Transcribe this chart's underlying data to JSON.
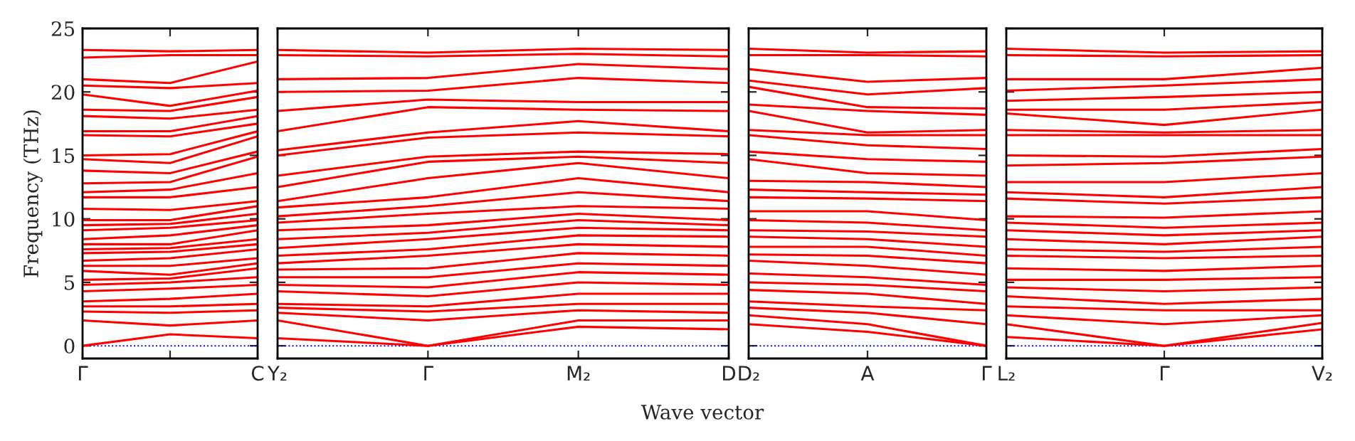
{
  "chart_data": [
    {
      "type": "line",
      "ylabel": "Frequency (THz)",
      "categories": [
        "Γ",
        null,
        "C"
      ],
      "ylim": [
        -1,
        25
      ],
      "yticks": [
        0,
        5,
        10,
        15,
        20,
        25
      ],
      "line_style": "solid",
      "ref_lines": [
        {
          "axis": "y",
          "value": 0,
          "color": "#0000ff",
          "line_style": "dotted"
        }
      ],
      "series": [
        {
          "color": "#ff0000",
          "values": [
            0,
            0.9,
            0.6
          ]
        },
        {
          "color": "#ff0000",
          "values": [
            2.0,
            1.6,
            2.0
          ]
        },
        {
          "color": "#ff0000",
          "values": [
            2.7,
            2.6,
            2.8
          ]
        },
        {
          "color": "#ff0000",
          "values": [
            3.1,
            3.1,
            3.3
          ]
        },
        {
          "color": "#ff0000",
          "values": [
            3.5,
            3.7,
            4.1
          ]
        },
        {
          "color": "#ff0000",
          "values": [
            4.3,
            4.5,
            4.8
          ]
        },
        {
          "color": "#ff0000",
          "values": [
            4.8,
            5.0,
            5.4
          ]
        },
        {
          "color": "#ff0000",
          "values": [
            5.2,
            5.3,
            6.1
          ]
        },
        {
          "color": "#ff0000",
          "values": [
            5.9,
            5.6,
            6.5
          ]
        },
        {
          "color": "#ff0000",
          "values": [
            6.3,
            6.3,
            6.9
          ]
        },
        {
          "color": "#ff0000",
          "values": [
            6.7,
            6.9,
            7.6
          ]
        },
        {
          "color": "#ff0000",
          "values": [
            7.3,
            7.4,
            8.0
          ]
        },
        {
          "color": "#ff0000",
          "values": [
            7.6,
            7.7,
            8.4
          ]
        },
        {
          "color": "#ff0000",
          "values": [
            8.0,
            8.0,
            9.1
          ]
        },
        {
          "color": "#ff0000",
          "values": [
            8.4,
            8.7,
            9.5
          ]
        },
        {
          "color": "#ff0000",
          "values": [
            9.1,
            9.3,
            9.9
          ]
        },
        {
          "color": "#ff0000",
          "values": [
            9.5,
            9.6,
            10.4
          ]
        },
        {
          "color": "#ff0000",
          "values": [
            9.9,
            9.9,
            11.0
          ]
        },
        {
          "color": "#ff0000",
          "values": [
            10.8,
            10.7,
            11.4
          ]
        },
        {
          "color": "#ff0000",
          "values": [
            11.7,
            11.7,
            12.5
          ]
        },
        {
          "color": "#ff0000",
          "values": [
            12.1,
            12.3,
            13.6
          ]
        },
        {
          "color": "#ff0000",
          "values": [
            12.8,
            12.9,
            14.9
          ]
        },
        {
          "color": "#ff0000",
          "values": [
            13.8,
            13.6,
            15.3
          ]
        },
        {
          "color": "#ff0000",
          "values": [
            14.7,
            14.4,
            16.5
          ]
        },
        {
          "color": "#ff0000",
          "values": [
            15.0,
            15.1,
            16.9
          ]
        },
        {
          "color": "#ff0000",
          "values": [
            16.6,
            16.5,
            17.5
          ]
        },
        {
          "color": "#ff0000",
          "values": [
            16.9,
            16.9,
            18.1
          ]
        },
        {
          "color": "#ff0000",
          "values": [
            18.1,
            17.9,
            18.6
          ]
        },
        {
          "color": "#ff0000",
          "values": [
            18.6,
            18.5,
            19.6
          ]
        },
        {
          "color": "#ff0000",
          "values": [
            19.8,
            18.9,
            20.1
          ]
        },
        {
          "color": "#ff0000",
          "values": [
            20.5,
            20.3,
            20.7
          ]
        },
        {
          "color": "#ff0000",
          "values": [
            21.0,
            20.7,
            22.4
          ]
        },
        {
          "color": "#ff0000",
          "values": [
            22.7,
            22.9,
            22.9
          ]
        },
        {
          "color": "#ff0000",
          "values": [
            23.3,
            23.2,
            23.3
          ]
        }
      ]
    },
    {
      "type": "line",
      "xlabel": "Wave vector",
      "categories": [
        "Y₂",
        "Γ",
        "M₂",
        "D"
      ],
      "ylim": [
        -1,
        25
      ],
      "yticks": [
        0,
        5,
        10,
        15,
        20,
        25
      ],
      "tick_labels": "x",
      "line_style": "solid",
      "ref_lines": [
        {
          "axis": "y",
          "value": 0,
          "color": "#0000ff",
          "line_style": "dotted"
        }
      ],
      "series": [
        {
          "color": "#ff0000",
          "values": [
            0.6,
            0,
            1.5,
            1.3
          ]
        },
        {
          "color": "#ff0000",
          "values": [
            2.0,
            0,
            2.0,
            2.0
          ]
        },
        {
          "color": "#ff0000",
          "values": [
            2.6,
            2.0,
            2.8,
            2.6
          ]
        },
        {
          "color": "#ff0000",
          "values": [
            3.0,
            2.7,
            3.3,
            3.3
          ]
        },
        {
          "color": "#ff0000",
          "values": [
            3.3,
            3.1,
            4.1,
            4.1
          ]
        },
        {
          "color": "#ff0000",
          "values": [
            4.3,
            3.9,
            5.0,
            4.8
          ]
        },
        {
          "color": "#ff0000",
          "values": [
            4.8,
            4.6,
            5.8,
            5.6
          ]
        },
        {
          "color": "#ff0000",
          "values": [
            5.4,
            5.4,
            6.5,
            6.3
          ]
        },
        {
          "color": "#ff0000",
          "values": [
            6.0,
            6.1,
            7.3,
            7.1
          ]
        },
        {
          "color": "#ff0000",
          "values": [
            6.5,
            7.1,
            8.0,
            7.8
          ]
        },
        {
          "color": "#ff0000",
          "values": [
            7.1,
            7.6,
            8.7,
            8.6
          ]
        },
        {
          "color": "#ff0000",
          "values": [
            7.7,
            8.4,
            9.3,
            9.1
          ]
        },
        {
          "color": "#ff0000",
          "values": [
            8.4,
            8.9,
            9.9,
            9.5
          ]
        },
        {
          "color": "#ff0000",
          "values": [
            9.1,
            9.5,
            10.4,
            9.9
          ]
        },
        {
          "color": "#ff0000",
          "values": [
            9.7,
            10.4,
            11.0,
            10.8
          ]
        },
        {
          "color": "#ff0000",
          "values": [
            10.2,
            11.0,
            12.1,
            11.4
          ]
        },
        {
          "color": "#ff0000",
          "values": [
            10.9,
            11.7,
            13.2,
            12.1
          ]
        },
        {
          "color": "#ff0000",
          "values": [
            11.4,
            13.2,
            14.4,
            13.2
          ]
        },
        {
          "color": "#ff0000",
          "values": [
            12.5,
            14.5,
            14.9,
            14.4
          ]
        },
        {
          "color": "#ff0000",
          "values": [
            13.4,
            14.9,
            15.3,
            15.1
          ]
        },
        {
          "color": "#ff0000",
          "values": [
            15.0,
            16.4,
            16.8,
            16.5
          ]
        },
        {
          "color": "#ff0000",
          "values": [
            15.4,
            16.8,
            17.7,
            16.9
          ]
        },
        {
          "color": "#ff0000",
          "values": [
            16.9,
            18.8,
            18.6,
            18.5
          ]
        },
        {
          "color": "#ff0000",
          "values": [
            18.5,
            19.4,
            19.2,
            19.2
          ]
        },
        {
          "color": "#ff0000",
          "values": [
            20.0,
            20.1,
            21.1,
            20.7
          ]
        },
        {
          "color": "#ff0000",
          "values": [
            21.0,
            21.1,
            22.2,
            21.8
          ]
        },
        {
          "color": "#ff0000",
          "values": [
            22.9,
            22.8,
            23.0,
            22.8
          ]
        },
        {
          "color": "#ff0000",
          "values": [
            23.3,
            23.1,
            23.4,
            23.3
          ]
        }
      ]
    },
    {
      "type": "line",
      "categories": [
        "D₂",
        "A",
        "Γ"
      ],
      "ylim": [
        -1,
        25
      ],
      "yticks": [
        0,
        5,
        10,
        15,
        20,
        25
      ],
      "tick_labels": "x",
      "line_style": "solid",
      "ref_lines": [
        {
          "axis": "y",
          "value": 0,
          "color": "#0000ff",
          "line_style": "dotted"
        }
      ],
      "series": [
        {
          "color": "#ff0000",
          "values": [
            1.7,
            1.1,
            0
          ]
        },
        {
          "color": "#ff0000",
          "values": [
            2.4,
            1.7,
            0
          ]
        },
        {
          "color": "#ff0000",
          "values": [
            3.0,
            2.6,
            1.7
          ]
        },
        {
          "color": "#ff0000",
          "values": [
            3.5,
            3.1,
            2.8
          ]
        },
        {
          "color": "#ff0000",
          "values": [
            4.4,
            4.1,
            3.3
          ]
        },
        {
          "color": "#ff0000",
          "values": [
            5.0,
            4.8,
            4.3
          ]
        },
        {
          "color": "#ff0000",
          "values": [
            5.7,
            5.4,
            4.8
          ]
        },
        {
          "color": "#ff0000",
          "values": [
            6.7,
            6.3,
            5.6
          ]
        },
        {
          "color": "#ff0000",
          "values": [
            7.2,
            7.1,
            6.5
          ]
        },
        {
          "color": "#ff0000",
          "values": [
            7.8,
            7.8,
            7.1
          ]
        },
        {
          "color": "#ff0000",
          "values": [
            8.6,
            8.4,
            7.8
          ]
        },
        {
          "color": "#ff0000",
          "values": [
            9.1,
            9.0,
            8.6
          ]
        },
        {
          "color": "#ff0000",
          "values": [
            9.9,
            9.7,
            9.1
          ]
        },
        {
          "color": "#ff0000",
          "values": [
            10.6,
            10.6,
            9.9
          ]
        },
        {
          "color": "#ff0000",
          "values": [
            11.7,
            11.6,
            11.4
          ]
        },
        {
          "color": "#ff0000",
          "values": [
            12.3,
            12.1,
            11.9
          ]
        },
        {
          "color": "#ff0000",
          "values": [
            13.0,
            12.9,
            12.5
          ]
        },
        {
          "color": "#ff0000",
          "values": [
            14.7,
            13.6,
            13.4
          ]
        },
        {
          "color": "#ff0000",
          "values": [
            15.3,
            14.7,
            14.5
          ]
        },
        {
          "color": "#ff0000",
          "values": [
            16.6,
            15.8,
            15.5
          ]
        },
        {
          "color": "#ff0000",
          "values": [
            17.0,
            16.6,
            16.6
          ]
        },
        {
          "color": "#ff0000",
          "values": [
            18.5,
            16.8,
            17.0
          ]
        },
        {
          "color": "#ff0000",
          "values": [
            19.0,
            18.5,
            18.2
          ]
        },
        {
          "color": "#ff0000",
          "values": [
            20.4,
            18.8,
            18.7
          ]
        },
        {
          "color": "#ff0000",
          "values": [
            20.9,
            19.8,
            20.3
          ]
        },
        {
          "color": "#ff0000",
          "values": [
            21.8,
            20.8,
            21.1
          ]
        },
        {
          "color": "#ff0000",
          "values": [
            22.9,
            22.9,
            22.8
          ]
        },
        {
          "color": "#ff0000",
          "values": [
            23.4,
            23.1,
            23.2
          ]
        }
      ]
    },
    {
      "type": "line",
      "categories": [
        "L₂",
        "Γ",
        "V₂"
      ],
      "ylim": [
        -1,
        25
      ],
      "yticks": [
        0,
        5,
        10,
        15,
        20,
        25
      ],
      "tick_labels": "x",
      "line_style": "solid",
      "ref_lines": [
        {
          "axis": "y",
          "value": 0,
          "color": "#0000ff",
          "line_style": "dotted"
        }
      ],
      "series": [
        {
          "color": "#ff0000",
          "values": [
            0.7,
            0,
            1.3
          ]
        },
        {
          "color": "#ff0000",
          "values": [
            1.7,
            0,
            1.8
          ]
        },
        {
          "color": "#ff0000",
          "values": [
            2.4,
            1.7,
            2.4
          ]
        },
        {
          "color": "#ff0000",
          "values": [
            3.1,
            2.8,
            2.8
          ]
        },
        {
          "color": "#ff0000",
          "values": [
            3.9,
            3.3,
            3.7
          ]
        },
        {
          "color": "#ff0000",
          "values": [
            4.6,
            4.3,
            4.6
          ]
        },
        {
          "color": "#ff0000",
          "values": [
            5.2,
            5.2,
            5.4
          ]
        },
        {
          "color": "#ff0000",
          "values": [
            6.1,
            5.9,
            6.3
          ]
        },
        {
          "color": "#ff0000",
          "values": [
            7.1,
            6.9,
            7.1
          ]
        },
        {
          "color": "#ff0000",
          "values": [
            7.6,
            7.4,
            7.8
          ]
        },
        {
          "color": "#ff0000",
          "values": [
            8.4,
            8.0,
            8.6
          ]
        },
        {
          "color": "#ff0000",
          "values": [
            9.1,
            8.7,
            9.1
          ]
        },
        {
          "color": "#ff0000",
          "values": [
            9.7,
            9.3,
            9.7
          ]
        },
        {
          "color": "#ff0000",
          "values": [
            10.2,
            10.1,
            10.6
          ]
        },
        {
          "color": "#ff0000",
          "values": [
            11.6,
            11.2,
            11.7
          ]
        },
        {
          "color": "#ff0000",
          "values": [
            12.1,
            11.7,
            12.5
          ]
        },
        {
          "color": "#ff0000",
          "values": [
            12.9,
            12.9,
            13.6
          ]
        },
        {
          "color": "#ff0000",
          "values": [
            14.2,
            14.4,
            14.9
          ]
        },
        {
          "color": "#ff0000",
          "values": [
            15.0,
            14.9,
            15.5
          ]
        },
        {
          "color": "#ff0000",
          "values": [
            16.6,
            16.6,
            16.6
          ]
        },
        {
          "color": "#ff0000",
          "values": [
            17.0,
            16.8,
            17.0
          ]
        },
        {
          "color": "#ff0000",
          "values": [
            18.3,
            17.4,
            18.6
          ]
        },
        {
          "color": "#ff0000",
          "values": [
            18.6,
            18.6,
            19.2
          ]
        },
        {
          "color": "#ff0000",
          "values": [
            19.3,
            19.6,
            20.0
          ]
        },
        {
          "color": "#ff0000",
          "values": [
            20.1,
            20.5,
            21.0
          ]
        },
        {
          "color": "#ff0000",
          "values": [
            21.0,
            21.0,
            21.9
          ]
        },
        {
          "color": "#ff0000",
          "values": [
            22.9,
            22.8,
            22.9
          ]
        },
        {
          "color": "#ff0000",
          "values": [
            23.4,
            23.1,
            23.2
          ]
        }
      ]
    }
  ]
}
